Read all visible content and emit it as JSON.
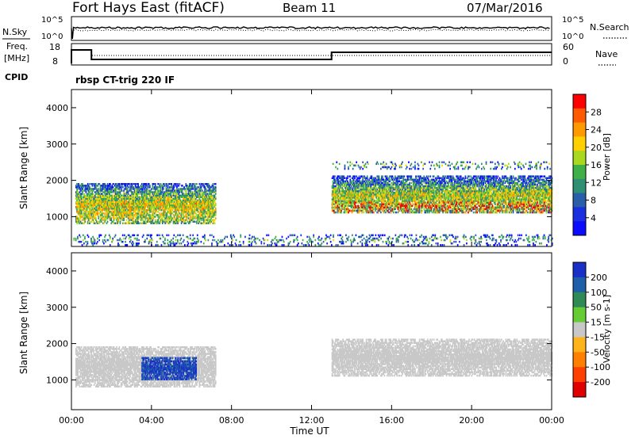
{
  "header": {
    "site": "Fort Hays East (fitACF)",
    "beam": "Beam 11",
    "date": "07/Mar/2016"
  },
  "status_panels": {
    "nsky_label": "N.Sky",
    "nsearch_label": "N.Search",
    "noise_ticks_left": [
      "10^5",
      "10^0"
    ],
    "noise_ticks_right": [
      "10^5",
      "10^0"
    ],
    "freq_label": [
      "Freq.",
      "[MHz]"
    ],
    "freq_ticks": [
      "18",
      "8"
    ],
    "nave_label": "Nave",
    "nave_ticks": [
      "60",
      "0"
    ],
    "cpid_label": "CPID",
    "cpid_text": "rbsp CT-trig 220 IF",
    "freq_steps": [
      {
        "t_start_h": 0.0,
        "t_end_h": 1.0,
        "freq_mhz": 16.5
      },
      {
        "t_start_h": 1.0,
        "t_end_h": 13.0,
        "freq_mhz": 10.5
      },
      {
        "t_start_h": 13.0,
        "t_end_h": 24.0,
        "freq_mhz": 15.0
      }
    ]
  },
  "chart_data": [
    {
      "type": "heatmap",
      "quantity": "Power",
      "xlabel": "Time UT",
      "ylabel": "Slant Range [km]",
      "xlim": [
        0,
        24
      ],
      "ylim": [
        180,
        4500
      ],
      "x_ticks": [
        "00:00",
        "04:00",
        "08:00",
        "12:00",
        "16:00",
        "20:00",
        "00:00"
      ],
      "y_ticks": [
        "1000",
        "2000",
        "3000",
        "4000"
      ],
      "colorbar_label": "Power [dB]",
      "colorbar_ticks": [
        "28",
        "24",
        "20",
        "16",
        "12",
        "8",
        "4"
      ],
      "colorbar_colors": [
        "#ff0000",
        "#ff5a00",
        "#ff9900",
        "#ffd000",
        "#a8d820",
        "#3fb048",
        "#2f8f73",
        "#2b5ea8",
        "#1a30e0",
        "#0b0bff"
      ],
      "scatter_bands": [
        {
          "t_start_h": 0.2,
          "t_end_h": 7.2,
          "r_start_km": 800,
          "r_end_km": 1900,
          "power_db": 18
        },
        {
          "t_start_h": 13.0,
          "t_end_h": 24.0,
          "r_start_km": 1100,
          "r_end_km": 2100,
          "power_db": 16
        },
        {
          "t_start_h": 13.0,
          "t_end_h": 24.0,
          "r_start_km": 1100,
          "r_end_km": 1400,
          "power_db": 28
        },
        {
          "t_start_h": 13.0,
          "t_end_h": 24.0,
          "r_start_km": 2300,
          "r_end_km": 2500,
          "power_db": 10
        },
        {
          "t_start_h": 0.1,
          "t_end_h": 24.0,
          "r_start_km": 200,
          "r_end_km": 500,
          "power_db": 8
        }
      ]
    },
    {
      "type": "heatmap",
      "quantity": "Velocity",
      "xlabel": "Time UT",
      "ylabel": "Slant Range [km]",
      "xlim": [
        0,
        24
      ],
      "ylim": [
        180,
        4500
      ],
      "x_ticks": [
        "00:00",
        "04:00",
        "08:00",
        "12:00",
        "16:00",
        "20:00",
        "00:00"
      ],
      "y_ticks": [
        "1000",
        "2000",
        "3000",
        "4000"
      ],
      "colorbar_label": "Velocity [m s-1]",
      "colorbar_ticks": [
        "200",
        "100",
        "50",
        "15",
        "-15",
        "-50",
        "-100",
        "-200"
      ],
      "colorbar_colors": [
        "#1a2fc8",
        "#1f5ea8",
        "#2f8a55",
        "#66cc33",
        "#c8c8c8",
        "#ffb31a",
        "#ff7f00",
        "#ff4000",
        "#e00000"
      ],
      "scatter_bands": [
        {
          "t_start_h": 0.2,
          "t_end_h": 7.2,
          "r_start_km": 800,
          "r_end_km": 1900,
          "velocity_ms": 0
        },
        {
          "t_start_h": 3.5,
          "t_end_h": 6.2,
          "r_start_km": 1000,
          "r_end_km": 1600,
          "velocity_ms": 200
        },
        {
          "t_start_h": 13.0,
          "t_end_h": 24.0,
          "r_start_km": 1100,
          "r_end_km": 2100,
          "velocity_ms": 0
        }
      ]
    }
  ]
}
